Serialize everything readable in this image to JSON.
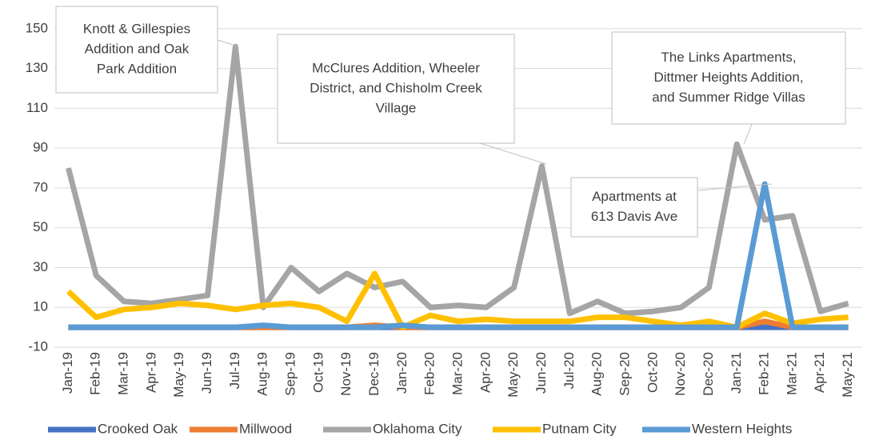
{
  "chart_data": {
    "type": "line",
    "categories": [
      "Jan-19",
      "Feb-19",
      "Mar-19",
      "Apr-19",
      "May-19",
      "Jun-19",
      "Jul-19",
      "Aug-19",
      "Sep-19",
      "Oct-19",
      "Nov-19",
      "Dec-19",
      "Jan-20",
      "Feb-20",
      "Mar-20",
      "Apr-20",
      "May-20",
      "Jun-20",
      "Jul-20",
      "Aug-20",
      "Sep-20",
      "Oct-20",
      "Nov-20",
      "Dec-20",
      "Jan-21",
      "Feb-21",
      "Mar-21",
      "Apr-21",
      "May-21"
    ],
    "series": [
      {
        "name": "Crooked Oak",
        "color": "#4472c4",
        "values": [
          0,
          0,
          0,
          0,
          0,
          0,
          0,
          0,
          0,
          0,
          0,
          0,
          0,
          0,
          0,
          0,
          0,
          0,
          0,
          0,
          0,
          0,
          0,
          0,
          0,
          0,
          0,
          0,
          0
        ]
      },
      {
        "name": "Millwood",
        "color": "#ed7d31",
        "values": [
          0,
          0,
          0,
          0,
          0,
          0,
          0,
          0,
          0,
          0,
          0,
          1,
          0,
          0,
          0,
          0,
          0,
          0,
          0,
          0,
          0,
          0,
          0,
          0,
          0,
          3,
          0,
          0,
          0
        ]
      },
      {
        "name": "Oklahoma City",
        "color": "#a5a5a5",
        "values": [
          80,
          26,
          13,
          12,
          14,
          16,
          141,
          10,
          30,
          18,
          27,
          20,
          23,
          10,
          11,
          10,
          20,
          81,
          7,
          13,
          7,
          8,
          10,
          20,
          92,
          54,
          56,
          8,
          12
        ]
      },
      {
        "name": "Putnam City",
        "color": "#ffc000",
        "values": [
          18,
          5,
          9,
          10,
          12,
          11,
          9,
          11,
          12,
          10,
          3,
          27,
          0,
          6,
          3,
          4,
          3,
          3,
          3,
          5,
          5,
          3,
          1,
          3,
          0,
          7,
          2,
          4,
          5
        ]
      },
      {
        "name": "Western Heights",
        "color": "#5b9bd5",
        "values": [
          0,
          0,
          0,
          0,
          0,
          0,
          0,
          1,
          0,
          0,
          0,
          0,
          1,
          0,
          0,
          0,
          0,
          0,
          0,
          0,
          0,
          0,
          0,
          0,
          0,
          72,
          0,
          0,
          0
        ]
      }
    ],
    "ylim": [
      -10,
      160
    ],
    "yticks": [
      -10,
      10,
      30,
      50,
      70,
      90,
      110,
      130,
      150
    ],
    "grid": true,
    "legend": "bottom",
    "annotations": [
      {
        "lines": [
          "Knott & Gillespies",
          "Addition and Oak",
          "Park Addition"
        ]
      },
      {
        "lines": [
          "McClures Addition, Wheeler",
          "District, and Chisholm Creek",
          "Village"
        ]
      },
      {
        "lines": [
          "The Links Apartments,",
          "Dittmer Heights Addition,",
          "and Summer Ridge Villas"
        ]
      },
      {
        "lines": [
          "Apartments at",
          "613 Davis Ave"
        ]
      }
    ]
  }
}
